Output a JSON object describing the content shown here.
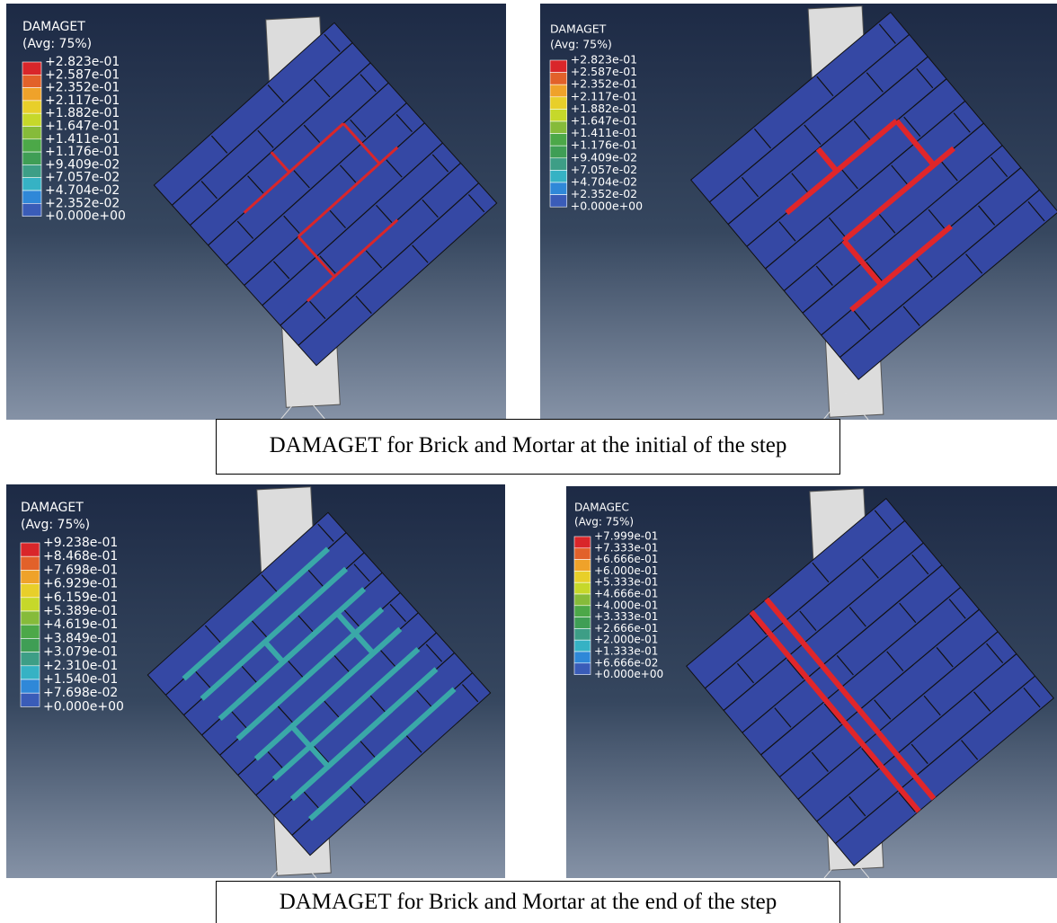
{
  "panels": [
    {
      "legend": {
        "title": "DAMAGET",
        "subtitle": "(Avg: 75%)",
        "levels": [
          "+2.823e-01",
          "+2.587e-01",
          "+2.352e-01",
          "+2.117e-01",
          "+1.882e-01",
          "+1.647e-01",
          "+1.411e-01",
          "+1.176e-01",
          "+9.409e-02",
          "+7.057e-02",
          "+4.704e-02",
          "+2.352e-02",
          "+0.000e+00"
        ]
      }
    },
    {
      "legend": {
        "title": "DAMAGET",
        "subtitle": "(Avg: 75%)",
        "levels": [
          "+2.823e-01",
          "+2.587e-01",
          "+2.352e-01",
          "+2.117e-01",
          "+1.882e-01",
          "+1.647e-01",
          "+1.411e-01",
          "+1.176e-01",
          "+9.409e-02",
          "+7.057e-02",
          "+4.704e-02",
          "+2.352e-02",
          "+0.000e+00"
        ]
      }
    },
    {
      "legend": {
        "title": "DAMAGET",
        "subtitle": "(Avg: 75%)",
        "levels": [
          "+9.238e-01",
          "+8.468e-01",
          "+7.698e-01",
          "+6.929e-01",
          "+6.159e-01",
          "+5.389e-01",
          "+4.619e-01",
          "+3.849e-01",
          "+3.079e-01",
          "+2.310e-01",
          "+1.540e-01",
          "+7.698e-02",
          "+0.000e+00"
        ]
      }
    },
    {
      "legend": {
        "title": "DAMAGEC",
        "subtitle": "(Avg: 75%)",
        "levels": [
          "+7.999e-01",
          "+7.333e-01",
          "+6.666e-01",
          "+6.000e-01",
          "+5.333e-01",
          "+4.666e-01",
          "+4.000e-01",
          "+3.333e-01",
          "+2.666e-01",
          "+2.000e-01",
          "+1.333e-01",
          "+6.666e-02",
          "+0.000e+00"
        ]
      }
    }
  ],
  "captions": [
    "DAMAGET for Brick and Mortar at the initial of the step",
    "DAMAGET for Brick and Mortar at the end of the step"
  ]
}
